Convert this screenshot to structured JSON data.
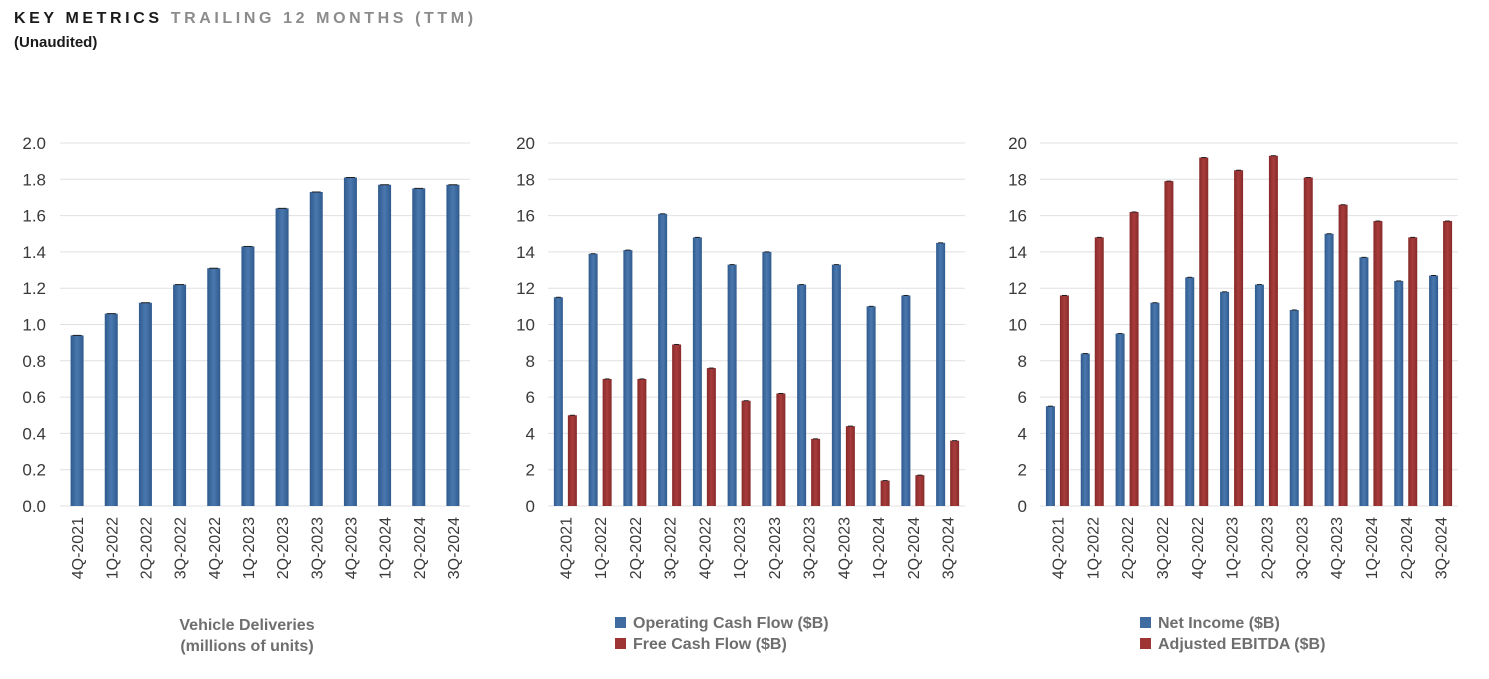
{
  "header": {
    "title_main": "KEY METRICS",
    "title_sub": "TRAILING 12 MONTHS (TTM)",
    "note": "(Unaudited)"
  },
  "colors": {
    "blue": "#3f6ba1",
    "red": "#9e3434",
    "grid": "#e0e0e0"
  },
  "chart_data": [
    {
      "type": "bar",
      "categories": [
        "4Q-2021",
        "1Q-2022",
        "2Q-2022",
        "3Q-2022",
        "4Q-2022",
        "1Q-2023",
        "2Q-2023",
        "3Q-2023",
        "4Q-2023",
        "1Q-2024",
        "2Q-2024",
        "3Q-2024"
      ],
      "ylim": [
        0,
        2.0
      ],
      "yticks": [
        "0.0",
        "0.2",
        "0.4",
        "0.6",
        "0.8",
        "1.0",
        "1.2",
        "1.4",
        "1.6",
        "1.8",
        "2.0"
      ],
      "series": [
        {
          "values": [
            0.94,
            1.06,
            1.12,
            1.22,
            1.31,
            1.43,
            1.64,
            1.73,
            1.81,
            1.77,
            1.75,
            1.77
          ]
        }
      ],
      "caption": [
        "Vehicle Deliveries",
        "(millions of units)"
      ],
      "grid": true
    },
    {
      "type": "bar",
      "categories": [
        "4Q-2021",
        "1Q-2022",
        "2Q-2022",
        "3Q-2022",
        "4Q-2022",
        "1Q-2023",
        "2Q-2023",
        "3Q-2023",
        "4Q-2023",
        "1Q-2024",
        "2Q-2024",
        "3Q-2024"
      ],
      "ylim": [
        0,
        20
      ],
      "yticks": [
        "0",
        "2",
        "4",
        "6",
        "8",
        "10",
        "12",
        "14",
        "16",
        "18",
        "20"
      ],
      "series": [
        {
          "name": "Operating Cash Flow ($B)",
          "values": [
            11.5,
            13.9,
            14.1,
            16.1,
            14.8,
            13.3,
            14.0,
            12.2,
            13.3,
            11.0,
            11.6,
            14.5
          ]
        },
        {
          "name": "Free Cash Flow ($B)",
          "values": [
            5.0,
            7.0,
            7.0,
            8.9,
            7.6,
            5.8,
            6.2,
            3.7,
            4.4,
            1.4,
            1.7,
            3.6
          ]
        }
      ],
      "legend": "bottom",
      "grid": true
    },
    {
      "type": "bar",
      "categories": [
        "4Q-2021",
        "1Q-2022",
        "2Q-2022",
        "3Q-2022",
        "4Q-2022",
        "1Q-2023",
        "2Q-2023",
        "3Q-2023",
        "4Q-2023",
        "1Q-2024",
        "2Q-2024",
        "3Q-2024"
      ],
      "ylim": [
        0,
        20
      ],
      "yticks": [
        "0",
        "2",
        "4",
        "6",
        "8",
        "10",
        "12",
        "14",
        "16",
        "18",
        "20"
      ],
      "series": [
        {
          "name": "Net Income ($B)",
          "values": [
            5.5,
            8.4,
            9.5,
            11.2,
            12.6,
            11.8,
            12.2,
            10.8,
            15.0,
            13.7,
            12.4,
            12.7
          ]
        },
        {
          "name": "Adjusted EBITDA ($B)",
          "values": [
            11.6,
            14.8,
            16.2,
            17.9,
            19.2,
            18.5,
            19.3,
            18.1,
            16.6,
            15.7,
            14.8,
            15.7
          ]
        }
      ],
      "legend": "bottom",
      "grid": true
    }
  ]
}
